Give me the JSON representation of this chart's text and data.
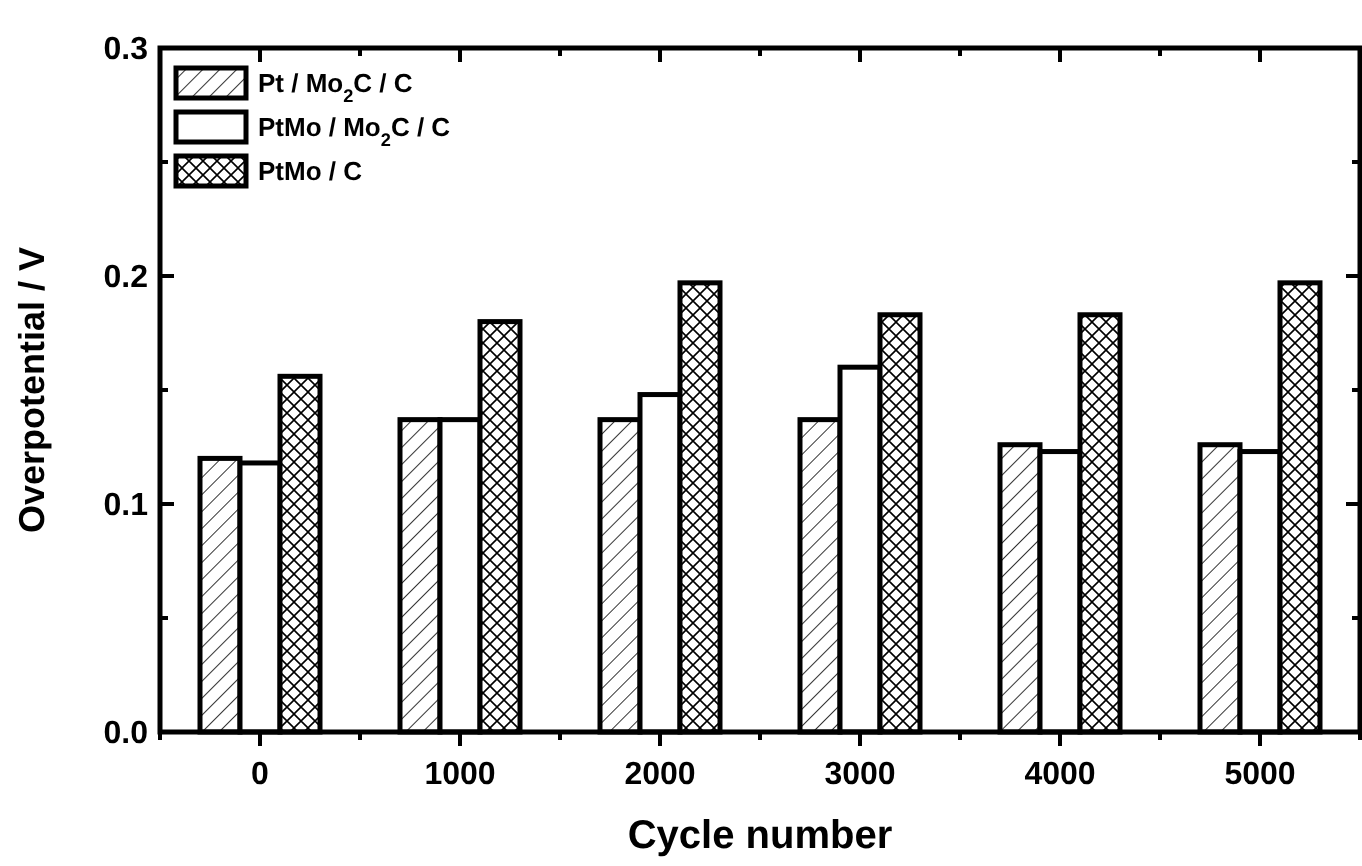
{
  "chart_data": {
    "type": "bar",
    "xlabel": "Cycle number",
    "ylabel": "Overpotential / V",
    "categories": [
      "0",
      "1000",
      "2000",
      "3000",
      "4000",
      "5000"
    ],
    "series": [
      {
        "name": "Pt / Mo$_{2}$C / C",
        "color": "#000000",
        "values": [
          0.12,
          0.137,
          0.137,
          0.137,
          0.126,
          0.126
        ]
      },
      {
        "name": "PtMo / Mo$_{2}$C / C",
        "color": "#000000",
        "values": [
          0.118,
          0.137,
          0.148,
          0.16,
          0.123,
          0.123
        ]
      },
      {
        "name": "PtMo / C",
        "color": "#000000",
        "values": [
          0.156,
          0.18,
          0.197,
          0.183,
          0.183,
          0.197
        ]
      }
    ],
    "ylim": [
      0,
      0.3
    ],
    "yticks": [
      {
        "value": 0,
        "label": "0.0"
      },
      {
        "value": 0.05,
        "label": null
      },
      {
        "value": 0.1,
        "label": "0.1"
      },
      {
        "value": 0.15,
        "label": null
      },
      {
        "value": 0.2,
        "label": "0.2"
      },
      {
        "value": 0.25,
        "label": null
      },
      {
        "value": 0.3,
        "label": "0.3"
      }
    ],
    "grid": false,
    "legend": "top left"
  }
}
